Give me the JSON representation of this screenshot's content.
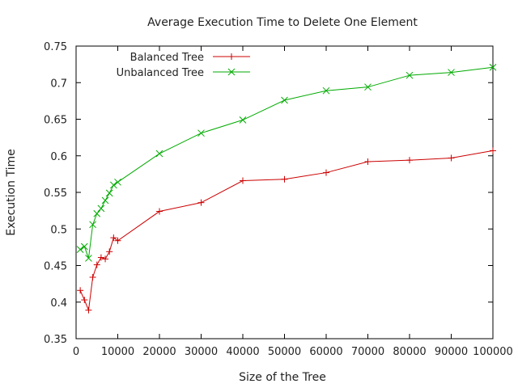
{
  "chart_data": {
    "type": "line",
    "title": "Average Execution Time to Delete One Element",
    "xlabel": "Size of the Tree",
    "ylabel": "Execution Time",
    "xlim": [
      0,
      100000
    ],
    "ylim": [
      0.35,
      0.75
    ],
    "xticks": [
      0,
      10000,
      20000,
      30000,
      40000,
      50000,
      60000,
      70000,
      80000,
      90000,
      100000
    ],
    "xtick_labels": [
      "0",
      "10000",
      "20000",
      "30000",
      "40000",
      "50000",
      "60000",
      "70000",
      "80000",
      "90000",
      "100000"
    ],
    "yticks": [
      0.35,
      0.4,
      0.45,
      0.5,
      0.55,
      0.6,
      0.65,
      0.7,
      0.75
    ],
    "ytick_labels": [
      "0.35",
      "0.4",
      "0.45",
      "0.5",
      "0.55",
      "0.6",
      "0.65",
      "0.7",
      "0.75"
    ],
    "grid": false,
    "legend_position": "top-left",
    "series": [
      {
        "name": "Balanced Tree",
        "color": "#cc0000",
        "marker": "plus",
        "x": [
          1000,
          2000,
          3000,
          4000,
          5000,
          6000,
          7000,
          8000,
          9000,
          10000,
          20000,
          30000,
          40000,
          50000,
          60000,
          70000,
          80000,
          90000,
          100000
        ],
        "y": [
          0.416,
          0.403,
          0.389,
          0.434,
          0.451,
          0.461,
          0.459,
          0.469,
          0.488,
          0.484,
          0.524,
          0.536,
          0.566,
          0.568,
          0.577,
          0.592,
          0.594,
          0.597,
          0.607
        ]
      },
      {
        "name": "Unbalanced Tree",
        "color": "#00aa00",
        "marker": "cross",
        "x": [
          1000,
          2000,
          3000,
          4000,
          5000,
          6000,
          7000,
          8000,
          9000,
          10000,
          20000,
          30000,
          40000,
          50000,
          60000,
          70000,
          80000,
          90000,
          100000
        ],
        "y": [
          0.472,
          0.476,
          0.46,
          0.506,
          0.521,
          0.528,
          0.539,
          0.549,
          0.56,
          0.564,
          0.603,
          0.631,
          0.649,
          0.676,
          0.689,
          0.694,
          0.71,
          0.714,
          0.721
        ]
      }
    ]
  }
}
